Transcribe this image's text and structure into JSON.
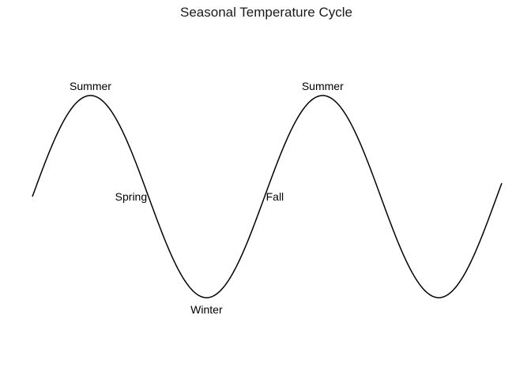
{
  "chart_data": {
    "type": "line",
    "title": "Seasonal Temperature Cycle",
    "xlabel": "",
    "ylabel": "",
    "axes_visible": false,
    "grid": false,
    "line_color": "#000000",
    "text_color": "#000000",
    "xlim": [
      0,
      12.7
    ],
    "ylim": [
      -1.25,
      1.25
    ],
    "series": [
      {
        "function": "sin",
        "x_start": 0,
        "x_end": 12.7,
        "samples": 400
      }
    ],
    "annotations": [
      {
        "label": "Summer",
        "x": 1.5708,
        "y": 1.0,
        "position": "above"
      },
      {
        "label": "Spring",
        "x": 3.1416,
        "y": 0.0,
        "position": "left"
      },
      {
        "label": "Winter",
        "x": 4.7124,
        "y": -1.0,
        "position": "below"
      },
      {
        "label": "Fall",
        "x": 6.2832,
        "y": 0.0,
        "position": "right"
      },
      {
        "label": "Summer",
        "x": 7.854,
        "y": 1.0,
        "position": "above"
      }
    ]
  }
}
